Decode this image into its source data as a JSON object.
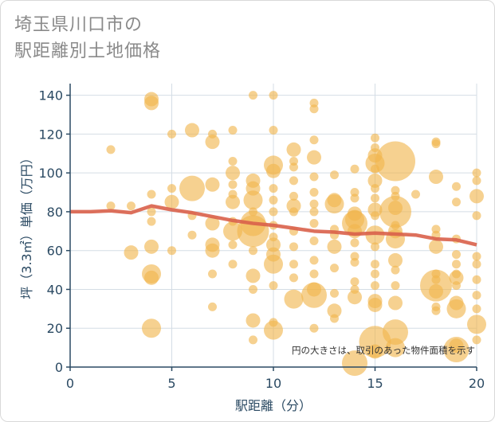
{
  "title": "埼玉県川口市の\n駅距離別土地価格",
  "chart_data": {
    "type": "scatter",
    "title": "埼玉県川口市の 駅距離別土地価格",
    "xlabel": "駅距離（分）",
    "ylabel": "坪（3.3㎡）単価（万円）",
    "xlim": [
      0,
      20
    ],
    "ylim": [
      0,
      146
    ],
    "x_ticks": [
      0,
      5,
      10,
      15,
      20
    ],
    "y_ticks": [
      0,
      20,
      40,
      60,
      80,
      100,
      120,
      140
    ],
    "grid": true,
    "annotation": "円の大きさは、取引のあった物件面積を示す",
    "colors": {
      "bubble": "#f0b44c",
      "trend": "#d9604a",
      "axis": "#2b4a63",
      "grid": "#d4dde5"
    },
    "series": [
      {
        "type": "scatter",
        "points": [
          [
            2,
            112,
            1
          ],
          [
            2,
            83,
            1
          ],
          [
            3,
            83,
            1
          ],
          [
            3,
            59,
            2
          ],
          [
            4,
            138,
            2
          ],
          [
            4,
            136,
            2
          ],
          [
            4,
            89,
            1
          ],
          [
            4,
            80,
            1
          ],
          [
            4,
            75,
            1
          ],
          [
            4,
            62,
            2
          ],
          [
            4,
            48,
            3
          ],
          [
            4,
            46,
            2
          ],
          [
            4,
            20,
            3
          ],
          [
            5,
            120,
            1
          ],
          [
            5,
            92,
            1
          ],
          [
            5,
            85,
            2
          ],
          [
            5,
            60,
            1
          ],
          [
            6,
            122,
            2
          ],
          [
            6,
            92,
            4
          ],
          [
            6,
            78,
            1
          ],
          [
            6,
            68,
            1
          ],
          [
            7,
            120,
            1
          ],
          [
            7,
            116,
            2
          ],
          [
            7,
            94,
            2
          ],
          [
            7,
            74,
            2
          ],
          [
            7,
            63,
            2
          ],
          [
            7,
            60,
            2
          ],
          [
            7,
            48,
            1
          ],
          [
            7,
            31,
            1
          ],
          [
            8,
            122,
            1
          ],
          [
            8,
            106,
            1
          ],
          [
            8,
            100,
            2
          ],
          [
            8,
            94,
            1
          ],
          [
            8,
            89,
            1
          ],
          [
            8,
            85,
            2
          ],
          [
            8,
            75,
            1
          ],
          [
            8,
            70,
            3
          ],
          [
            8,
            63,
            1
          ],
          [
            8,
            53,
            1
          ],
          [
            9,
            140,
            1
          ],
          [
            9,
            96,
            2
          ],
          [
            9,
            92,
            2
          ],
          [
            9,
            86,
            3
          ],
          [
            9,
            80,
            1
          ],
          [
            9,
            74,
            4
          ],
          [
            9,
            70,
            5
          ],
          [
            9,
            60,
            1
          ],
          [
            9,
            47,
            2
          ],
          [
            9,
            40,
            1
          ],
          [
            9,
            24,
            2
          ],
          [
            9,
            14,
            1
          ],
          [
            10,
            140,
            1
          ],
          [
            10,
            122,
            1
          ],
          [
            10,
            104,
            3
          ],
          [
            10,
            101,
            2
          ],
          [
            10,
            92,
            1
          ],
          [
            10,
            86,
            1
          ],
          [
            10,
            80,
            1
          ],
          [
            10,
            73,
            1
          ],
          [
            10,
            67,
            1
          ],
          [
            10,
            63,
            2
          ],
          [
            10,
            58,
            2
          ],
          [
            10,
            53,
            3
          ],
          [
            10,
            42,
            1
          ],
          [
            10,
            23,
            1
          ],
          [
            10,
            19,
            3
          ],
          [
            11,
            112,
            2
          ],
          [
            11,
            106,
            1
          ],
          [
            11,
            103,
            1
          ],
          [
            11,
            96,
            1
          ],
          [
            11,
            88,
            1
          ],
          [
            11,
            83,
            2
          ],
          [
            11,
            80,
            1
          ],
          [
            11,
            70,
            1
          ],
          [
            11,
            62,
            1
          ],
          [
            11,
            53,
            1
          ],
          [
            11,
            46,
            1
          ],
          [
            11,
            35,
            3
          ],
          [
            12,
            136,
            1
          ],
          [
            12,
            133,
            1
          ],
          [
            12,
            117,
            1
          ],
          [
            12,
            108,
            2
          ],
          [
            12,
            98,
            1
          ],
          [
            12,
            90,
            1
          ],
          [
            12,
            84,
            1
          ],
          [
            12,
            80,
            1
          ],
          [
            12,
            74,
            1
          ],
          [
            12,
            65,
            1
          ],
          [
            12,
            55,
            1
          ],
          [
            12,
            48,
            1
          ],
          [
            12,
            40,
            2
          ],
          [
            12,
            37,
            4
          ],
          [
            12,
            20,
            1
          ],
          [
            13,
            99,
            1
          ],
          [
            13,
            86,
            2
          ],
          [
            13,
            84,
            3
          ],
          [
            13,
            71,
            1
          ],
          [
            13,
            68,
            1
          ],
          [
            13,
            62,
            2
          ],
          [
            13,
            51,
            1
          ],
          [
            13,
            38,
            1
          ],
          [
            13,
            29,
            2
          ],
          [
            13,
            25,
            1
          ],
          [
            14,
            102,
            1
          ],
          [
            14,
            90,
            1
          ],
          [
            14,
            87,
            1
          ],
          [
            14,
            79,
            2
          ],
          [
            14,
            76,
            3
          ],
          [
            14,
            74,
            4
          ],
          [
            14,
            70,
            2
          ],
          [
            14,
            64,
            1
          ],
          [
            14,
            57,
            1
          ],
          [
            14,
            54,
            1
          ],
          [
            14,
            44,
            1
          ],
          [
            14,
            40,
            1
          ],
          [
            14,
            36,
            2
          ],
          [
            14,
            2,
            4
          ],
          [
            15,
            118,
            1
          ],
          [
            15,
            113,
            1
          ],
          [
            15,
            109,
            2
          ],
          [
            15,
            105,
            3
          ],
          [
            15,
            102,
            1
          ],
          [
            15,
            96,
            2
          ],
          [
            15,
            92,
            1
          ],
          [
            15,
            87,
            1
          ],
          [
            15,
            81,
            2
          ],
          [
            15,
            78,
            1
          ],
          [
            15,
            68,
            3
          ],
          [
            15,
            62,
            1
          ],
          [
            15,
            53,
            1
          ],
          [
            15,
            48,
            1
          ],
          [
            15,
            42,
            1
          ],
          [
            15,
            34,
            2
          ],
          [
            15,
            32,
            2
          ],
          [
            15,
            13,
            5
          ],
          [
            15,
            8,
            2
          ],
          [
            16,
            106,
            6
          ],
          [
            16,
            91,
            1
          ],
          [
            16,
            88,
            1
          ],
          [
            16,
            82,
            2
          ],
          [
            16,
            80,
            5
          ],
          [
            16,
            73,
            1
          ],
          [
            16,
            70,
            2
          ],
          [
            16,
            66,
            3
          ],
          [
            16,
            55,
            2
          ],
          [
            16,
            50,
            1
          ],
          [
            16,
            42,
            1
          ],
          [
            16,
            33,
            2
          ],
          [
            16,
            18,
            4
          ],
          [
            16,
            10,
            3
          ],
          [
            17,
            89,
            1
          ],
          [
            18,
            116,
            1
          ],
          [
            18,
            115,
            1
          ],
          [
            18,
            98,
            2
          ],
          [
            18,
            71,
            1
          ],
          [
            18,
            68,
            1
          ],
          [
            18,
            62,
            2
          ],
          [
            18,
            48,
            1
          ],
          [
            18,
            45,
            1
          ],
          [
            18,
            42,
            5
          ],
          [
            18,
            39,
            2
          ],
          [
            18,
            31,
            1
          ],
          [
            18,
            29,
            1
          ],
          [
            19,
            93,
            1
          ],
          [
            19,
            85,
            1
          ],
          [
            19,
            66,
            1
          ],
          [
            19,
            58,
            1
          ],
          [
            19,
            53,
            1
          ],
          [
            19,
            48,
            1
          ],
          [
            19,
            46,
            2
          ],
          [
            19,
            42,
            1
          ],
          [
            19,
            33,
            2
          ],
          [
            19,
            30,
            3
          ],
          [
            19,
            11,
            2
          ],
          [
            19,
            9,
            4
          ],
          [
            20,
            100,
            1
          ],
          [
            20,
            96,
            1
          ],
          [
            20,
            88,
            2
          ],
          [
            20,
            78,
            1
          ],
          [
            20,
            57,
            1
          ],
          [
            20,
            53,
            1
          ],
          [
            20,
            45,
            1
          ],
          [
            20,
            37,
            1
          ],
          [
            20,
            30,
            1
          ],
          [
            20,
            22,
            3
          ],
          [
            20,
            14,
            1
          ]
        ]
      },
      {
        "type": "line",
        "x": [
          0,
          1,
          2,
          3,
          4,
          5,
          6,
          7,
          8,
          9,
          10,
          11,
          12,
          13,
          14,
          15,
          16,
          17,
          18,
          19,
          20
        ],
        "y": [
          80,
          80,
          80.5,
          79.5,
          83,
          81,
          79.5,
          77.5,
          75.5,
          74,
          73,
          71.5,
          70,
          69.5,
          68.5,
          69,
          68.5,
          68,
          66,
          65.5,
          63
        ]
      }
    ]
  }
}
